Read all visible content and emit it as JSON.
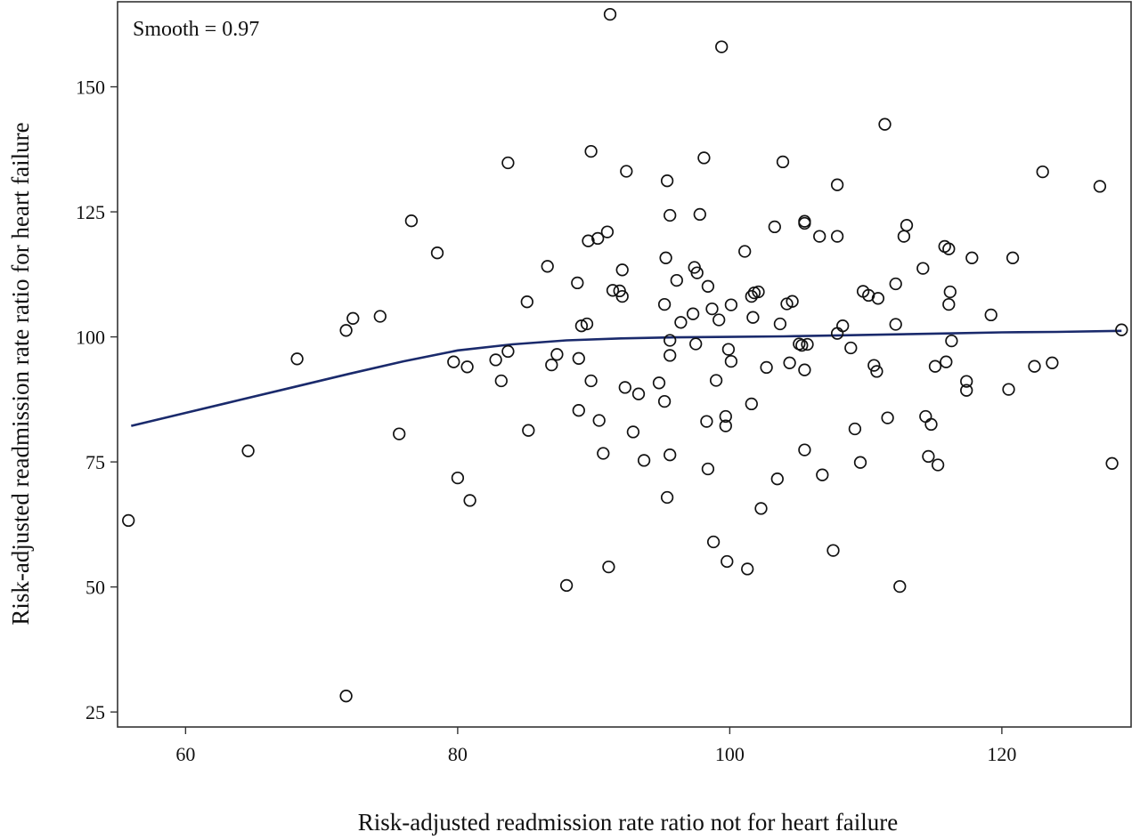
{
  "chart_data": {
    "type": "scatter",
    "title": "",
    "xlabel": "Risk-adjusted readmission rate ratio not for heart failure",
    "ylabel": "Risk-adjusted readmission rate ratio for heart failure",
    "annotation": "Smooth = 0.97",
    "xlim": [
      55,
      129.5
    ],
    "ylim": [
      22,
      167
    ],
    "x_ticks": [
      60,
      80,
      100,
      120
    ],
    "y_ticks": [
      25,
      50,
      75,
      100,
      125,
      150
    ],
    "grid": false,
    "marker": "open-circle",
    "colors": {
      "points": "#111111",
      "smooth_line": "#1a2a6c",
      "axes": "#333333"
    },
    "points": [
      [
        55.8,
        63.3
      ],
      [
        64.6,
        77.2
      ],
      [
        68.2,
        95.6
      ],
      [
        71.8,
        101.3
      ],
      [
        72.3,
        103.7
      ],
      [
        71.8,
        28.2
      ],
      [
        74.3,
        104.1
      ],
      [
        75.7,
        80.6
      ],
      [
        76.6,
        123.2
      ],
      [
        78.5,
        116.8
      ],
      [
        79.7,
        95.0
      ],
      [
        80.0,
        71.8
      ],
      [
        80.7,
        94.0
      ],
      [
        80.9,
        67.3
      ],
      [
        82.8,
        95.4
      ],
      [
        83.2,
        91.2
      ],
      [
        83.7,
        97.1
      ],
      [
        83.7,
        134.8
      ],
      [
        85.1,
        107.0
      ],
      [
        85.2,
        81.3
      ],
      [
        86.6,
        114.1
      ],
      [
        86.9,
        94.4
      ],
      [
        87.3,
        96.5
      ],
      [
        88.0,
        50.3
      ],
      [
        88.8,
        110.8
      ],
      [
        88.9,
        95.7
      ],
      [
        88.9,
        85.3
      ],
      [
        89.1,
        102.2
      ],
      [
        89.5,
        102.6
      ],
      [
        89.6,
        119.2
      ],
      [
        89.8,
        91.2
      ],
      [
        89.8,
        137.1
      ],
      [
        90.3,
        119.7
      ],
      [
        90.4,
        83.3
      ],
      [
        90.7,
        76.7
      ],
      [
        91.0,
        121.0
      ],
      [
        91.1,
        54.0
      ],
      [
        91.2,
        164.5
      ],
      [
        91.4,
        109.3
      ],
      [
        91.9,
        109.2
      ],
      [
        92.1,
        108.1
      ],
      [
        92.1,
        113.4
      ],
      [
        92.3,
        89.9
      ],
      [
        92.4,
        133.1
      ],
      [
        92.9,
        81.0
      ],
      [
        93.3,
        88.6
      ],
      [
        93.7,
        75.3
      ],
      [
        94.8,
        90.8
      ],
      [
        95.2,
        106.5
      ],
      [
        95.2,
        87.1
      ],
      [
        95.3,
        115.8
      ],
      [
        95.4,
        131.2
      ],
      [
        95.4,
        67.9
      ],
      [
        95.6,
        124.3
      ],
      [
        95.6,
        96.3
      ],
      [
        95.6,
        99.3
      ],
      [
        95.6,
        76.4
      ],
      [
        96.1,
        111.3
      ],
      [
        96.4,
        102.9
      ],
      [
        97.3,
        104.6
      ],
      [
        97.4,
        113.9
      ],
      [
        97.5,
        98.6
      ],
      [
        97.6,
        112.8
      ],
      [
        97.8,
        124.5
      ],
      [
        98.1,
        135.8
      ],
      [
        98.3,
        83.1
      ],
      [
        98.4,
        73.6
      ],
      [
        98.4,
        110.1
      ],
      [
        98.7,
        105.6
      ],
      [
        98.8,
        59.0
      ],
      [
        99.0,
        91.3
      ],
      [
        99.2,
        103.4
      ],
      [
        99.4,
        158.0
      ],
      [
        99.7,
        84.1
      ],
      [
        99.7,
        82.2
      ],
      [
        99.8,
        55.1
      ],
      [
        99.9,
        97.5
      ],
      [
        100.1,
        106.4
      ],
      [
        100.1,
        95.1
      ],
      [
        101.1,
        117.1
      ],
      [
        101.3,
        53.6
      ],
      [
        101.6,
        108.1
      ],
      [
        101.6,
        86.6
      ],
      [
        101.7,
        103.9
      ],
      [
        101.8,
        108.8
      ],
      [
        102.1,
        109.0
      ],
      [
        102.3,
        65.7
      ],
      [
        102.7,
        93.9
      ],
      [
        103.3,
        122.0
      ],
      [
        103.5,
        71.6
      ],
      [
        103.7,
        102.6
      ],
      [
        103.9,
        135.0
      ],
      [
        104.2,
        106.6
      ],
      [
        104.4,
        94.8
      ],
      [
        104.6,
        107.1
      ],
      [
        105.1,
        98.6
      ],
      [
        105.3,
        98.3
      ],
      [
        105.5,
        93.4
      ],
      [
        105.5,
        77.4
      ],
      [
        105.5,
        123.1
      ],
      [
        105.5,
        122.7
      ],
      [
        105.7,
        98.5
      ],
      [
        106.6,
        120.1
      ],
      [
        106.8,
        72.4
      ],
      [
        107.6,
        57.3
      ],
      [
        107.9,
        120.1
      ],
      [
        107.9,
        130.4
      ],
      [
        107.9,
        100.7
      ],
      [
        108.3,
        102.2
      ],
      [
        108.9,
        97.8
      ],
      [
        109.2,
        81.6
      ],
      [
        109.6,
        74.9
      ],
      [
        109.8,
        109.1
      ],
      [
        110.2,
        108.3
      ],
      [
        110.6,
        94.3
      ],
      [
        110.8,
        93.1
      ],
      [
        110.9,
        107.7
      ],
      [
        111.4,
        142.5
      ],
      [
        111.6,
        83.8
      ],
      [
        112.2,
        110.6
      ],
      [
        112.2,
        102.5
      ],
      [
        112.5,
        50.1
      ],
      [
        112.8,
        120.1
      ],
      [
        113.0,
        122.3
      ],
      [
        114.2,
        113.7
      ],
      [
        114.4,
        84.1
      ],
      [
        114.6,
        76.1
      ],
      [
        114.8,
        82.5
      ],
      [
        115.1,
        94.1
      ],
      [
        115.3,
        74.4
      ],
      [
        115.8,
        118.1
      ],
      [
        115.9,
        95.0
      ],
      [
        116.1,
        117.6
      ],
      [
        116.1,
        106.5
      ],
      [
        116.2,
        109.0
      ],
      [
        116.3,
        99.2
      ],
      [
        117.4,
        91.1
      ],
      [
        117.4,
        89.3
      ],
      [
        117.8,
        115.8
      ],
      [
        119.2,
        104.4
      ],
      [
        120.5,
        89.5
      ],
      [
        120.8,
        115.8
      ],
      [
        122.4,
        94.1
      ],
      [
        123.0,
        133.0
      ],
      [
        123.7,
        94.8
      ],
      [
        127.2,
        130.1
      ],
      [
        128.1,
        74.7
      ],
      [
        128.8,
        101.4
      ]
    ],
    "smooth_line": [
      [
        56.0,
        82.2
      ],
      [
        60.0,
        84.8
      ],
      [
        64.0,
        87.4
      ],
      [
        68.0,
        90.0
      ],
      [
        72.0,
        92.6
      ],
      [
        76.0,
        95.1
      ],
      [
        80.0,
        97.3
      ],
      [
        84.0,
        98.5
      ],
      [
        88.0,
        99.3
      ],
      [
        92.0,
        99.7
      ],
      [
        96.0,
        99.9
      ],
      [
        100.0,
        100.0
      ],
      [
        104.0,
        100.1
      ],
      [
        108.0,
        100.3
      ],
      [
        112.0,
        100.5
      ],
      [
        116.0,
        100.7
      ],
      [
        120.0,
        100.9
      ],
      [
        124.0,
        101.0
      ],
      [
        128.8,
        101.2
      ]
    ]
  }
}
